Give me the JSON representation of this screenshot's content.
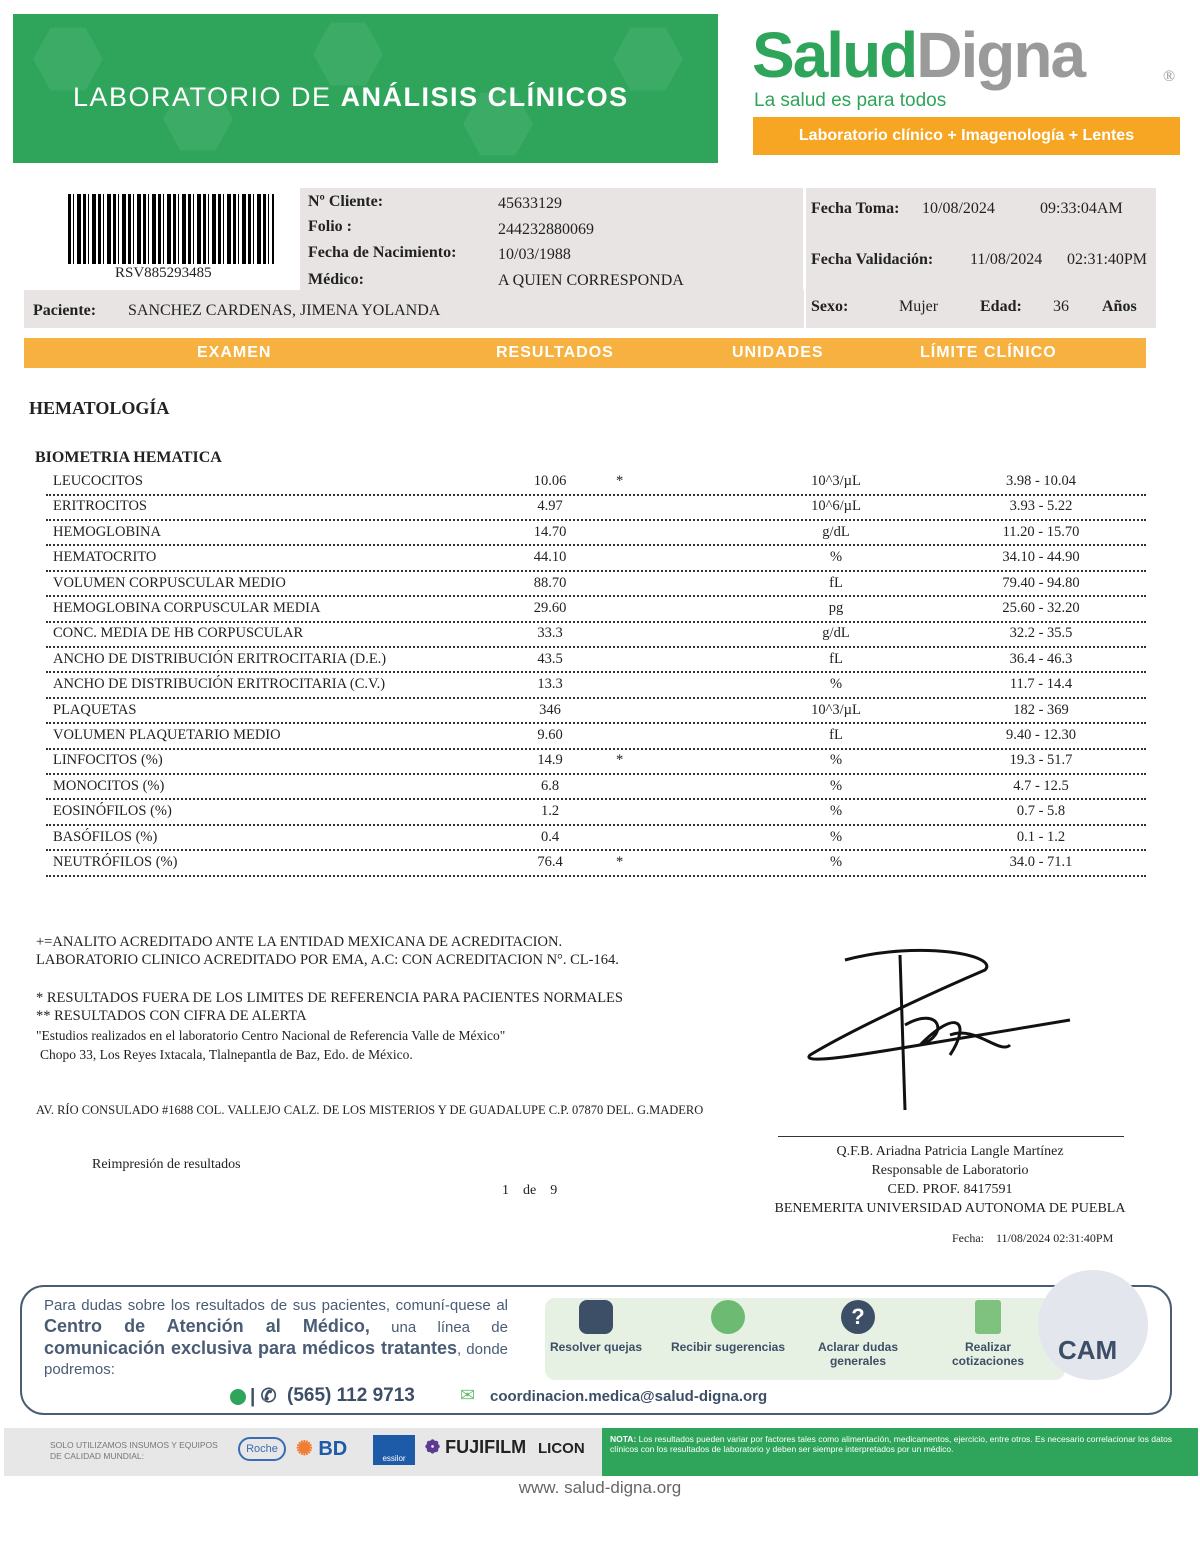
{
  "header": {
    "title_light": "LABORATORIO DE ",
    "title_bold": "ANÁLISIS CLÍNICOS",
    "brand_a": "Salud",
    "brand_b": "Digna",
    "registered": "®",
    "slogan": "La salud es para todos",
    "tagline": "Laboratorio clínico + Imagenología + Lentes"
  },
  "patient": {
    "barcode_text": "RSV885293485",
    "cliente_label": "Nº Cliente:",
    "cliente": "45633129",
    "folio_label": "Folio :",
    "folio": "244232880069",
    "nac_label": "Fecha de Nacimiento:",
    "nac": "10/03/1988",
    "medico_label": "Médico:",
    "medico": "A QUIEN CORRESPONDA",
    "paciente_label": "Paciente:",
    "paciente": "SANCHEZ CARDENAS, JIMENA YOLANDA",
    "toma_label": "Fecha Toma:",
    "toma_fecha": "10/08/2024",
    "toma_hora": "09:33:04AM",
    "valid_label": "Fecha Validación:",
    "valid_fecha": "11/08/2024",
    "valid_hora": "02:31:40PM",
    "sexo_label": "Sexo:",
    "sexo": "Mujer",
    "edad_label": "Edad:",
    "edad": "36",
    "edad_unit": "Años"
  },
  "columns": [
    "EXAMEN",
    "RESULTADOS",
    "UNIDADES",
    "LÍMITE CLÍNICO"
  ],
  "section": "HEMATOLOGÍA",
  "subsection": "BIOMETRIA HEMATICA",
  "rows": [
    {
      "name": "LEUCOCITOS",
      "result": "10.06",
      "flag": "*",
      "unit": "10^3/µL",
      "range": "3.98 - 10.04"
    },
    {
      "name": "ERITROCITOS",
      "result": "4.97",
      "flag": "",
      "unit": "10^6/µL",
      "range": "3.93 - 5.22"
    },
    {
      "name": "HEMOGLOBINA",
      "result": "14.70",
      "flag": "",
      "unit": "g/dL",
      "range": "11.20 - 15.70"
    },
    {
      "name": "HEMATOCRITO",
      "result": "44.10",
      "flag": "",
      "unit": "%",
      "range": "34.10 - 44.90"
    },
    {
      "name": "VOLUMEN CORPUSCULAR MEDIO",
      "result": "88.70",
      "flag": "",
      "unit": "fL",
      "range": "79.40 - 94.80"
    },
    {
      "name": "HEMOGLOBINA CORPUSCULAR MEDIA",
      "result": "29.60",
      "flag": "",
      "unit": "pg",
      "range": "25.60 - 32.20"
    },
    {
      "name": "CONC. MEDIA DE HB CORPUSCULAR",
      "result": "33.3",
      "flag": "",
      "unit": "g/dL",
      "range": "32.2 - 35.5"
    },
    {
      "name": "ANCHO DE DISTRIBUCIÓN ERITROCITARIA (D.E.)",
      "result": "43.5",
      "flag": "",
      "unit": "fL",
      "range": "36.4 - 46.3"
    },
    {
      "name": "ANCHO DE DISTRIBUCIÓN ERITROCITARIA (C.V.)",
      "result": "13.3",
      "flag": "",
      "unit": "%",
      "range": "11.7 - 14.4"
    },
    {
      "name": "PLAQUETAS",
      "result": "346",
      "flag": "",
      "unit": "10^3/µL",
      "range": "182 - 369"
    },
    {
      "name": "VOLUMEN PLAQUETARIO MEDIO",
      "result": "9.60",
      "flag": "",
      "unit": "fL",
      "range": "9.40 - 12.30"
    },
    {
      "name": "LINFOCITOS (%)",
      "result": "14.9",
      "flag": "*",
      "unit": "%",
      "range": "19.3 - 51.7"
    },
    {
      "name": "MONOCITOS (%)",
      "result": "6.8",
      "flag": "",
      "unit": "%",
      "range": "4.7 - 12.5"
    },
    {
      "name": "EOSINÓFILOS (%)",
      "result": "1.2",
      "flag": "",
      "unit": "%",
      "range": "0.7 - 5.8"
    },
    {
      "name": "BASÓFILOS (%)",
      "result": "0.4",
      "flag": "",
      "unit": "%",
      "range": "0.1 - 1.2"
    },
    {
      "name": "NEUTRÓFILOS (%)",
      "result": "76.4",
      "flag": "*",
      "unit": "%",
      "range": "34.0 - 71.1"
    }
  ],
  "notes": [
    "+=ANALITO ACREDITADO ANTE LA ENTIDAD MEXICANA DE ACREDITACION.",
    "LABORATORIO CLINICO ACREDITADO POR EMA, A.C: CON ACREDITACION N°. CL-164.",
    "* RESULTADOS FUERA DE LOS LIMITES DE REFERENCIA PARA PACIENTES NORMALES",
    "** RESULTADOS CON CIFRA DE ALERTA",
    "\"Estudios realizados en el laboratorio Centro Nacional de Referencia Valle de México\"",
    "Chopo 33, Los Reyes Ixtacala, Tlalnepantla de Baz, Edo. de México."
  ],
  "address": "AV. RÍO CONSULADO #1688 COL. VALLEJO CALZ. DE LOS MISTERIOS Y DE GUADALUPE C.P. 07870  DEL. G.MADERO",
  "reprint": "Reimpresión de resultados",
  "page": {
    "current": "1",
    "of": "de",
    "total": "9"
  },
  "signer": {
    "name": "Q.F.B. Ariadna Patricia Langle Martínez",
    "role": "Responsable de Laboratorio",
    "ced": "CED. PROF. 8417591",
    "univ": "BENEMERITA UNIVERSIDAD AUTONOMA DE PUEBLA",
    "fecha_label": "Fecha:",
    "fecha": "11/08/2024 02:31:40PM"
  },
  "cam": {
    "text1": "Para dudas sobre los resultados de sus pacientes, comuní-quese al ",
    "bold1": "Centro de Atención al Médico,",
    "text2": " una línea de ",
    "bold2": "comunicación exclusiva para médicos tratantes",
    "text3": ", donde podremos:",
    "items": [
      "Resolver quejas",
      "Recibir sugerencias",
      "Aclarar dudas generales",
      "Realizar cotizaciones"
    ],
    "logo": "CAM",
    "phone": "(565) 112 9713",
    "email": "coordinacion.medica@salud-digna.org"
  },
  "footer": {
    "insumos": "SOLO UTILIZAMOS INSUMOS Y EQUIPOS DE CALIDAD MUNDIAL:",
    "brands": [
      "Roche",
      "BD",
      "essilor",
      "FUJIFILM",
      "LICON"
    ],
    "nota_label": "NOTA:",
    "nota": " Los resultados pueden variar por factores tales como alimentación, medicamentos, ejercicio, entre otros. Es necesario correlacionar los datos clínicos con los resultados de laboratorio y deben ser siempre interpretados por un médico.",
    "website": "www. salud-digna.org"
  },
  "colors": {
    "green": "#2ea55a",
    "orange": "#f6a623",
    "navy": "#3d4f66"
  }
}
